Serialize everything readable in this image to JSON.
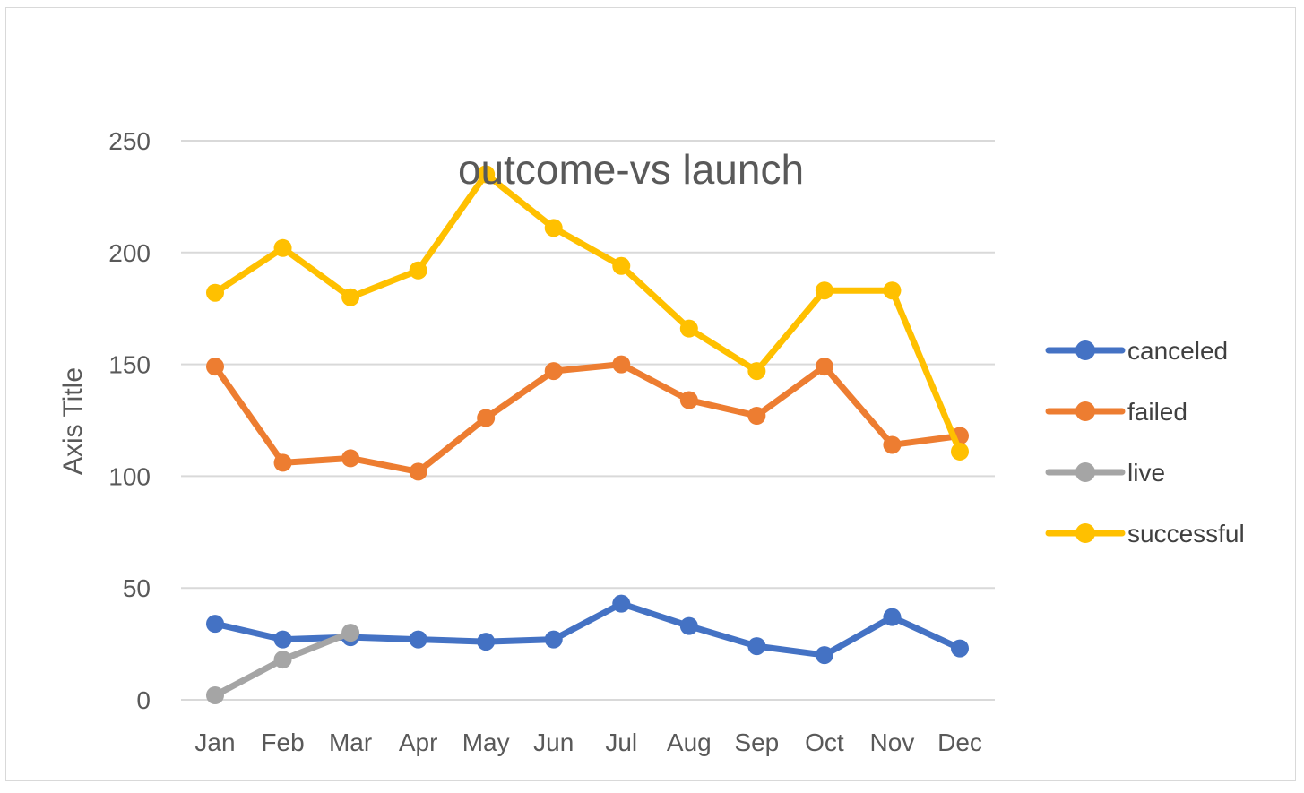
{
  "chart_data": {
    "type": "line",
    "title": "outcome-vs launch",
    "xlabel": "",
    "ylabel": "Axis Title",
    "categories": [
      "Jan",
      "Feb",
      "Mar",
      "Apr",
      "May",
      "Jun",
      "Jul",
      "Aug",
      "Sep",
      "Oct",
      "Nov",
      "Dec"
    ],
    "ylim": [
      0,
      250
    ],
    "yticks": [
      0,
      50,
      100,
      150,
      200,
      250
    ],
    "grid": true,
    "legend": "right",
    "series": [
      {
        "name": "canceled",
        "color": "#4472C4",
        "values": [
          34,
          27,
          28,
          27,
          26,
          27,
          43,
          33,
          24,
          20,
          37,
          23
        ]
      },
      {
        "name": "failed",
        "color": "#ED7D31",
        "values": [
          149,
          106,
          108,
          102,
          126,
          147,
          150,
          134,
          127,
          149,
          114,
          118
        ]
      },
      {
        "name": "live",
        "color": "#A5A5A5",
        "values": [
          2,
          18,
          30,
          null,
          null,
          null,
          null,
          null,
          null,
          null,
          null,
          null
        ]
      },
      {
        "name": "successful",
        "color": "#FFC000",
        "values": [
          182,
          202,
          180,
          192,
          235,
          211,
          194,
          166,
          147,
          183,
          183,
          111
        ]
      }
    ]
  }
}
